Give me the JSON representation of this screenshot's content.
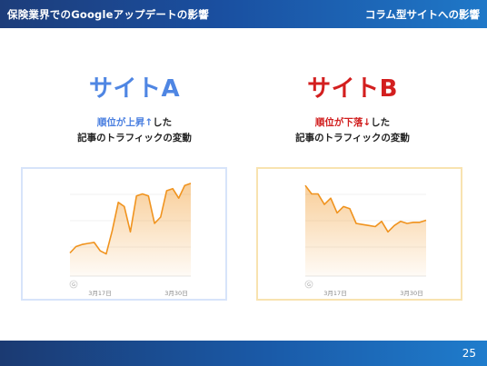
{
  "header": {
    "title": "保険業界でのGoogleアップデートの影響",
    "section": "コラム型サイトへの影響"
  },
  "site_a": {
    "title": "サイトA",
    "highlight": "順位が上昇↑",
    "suffix": "した",
    "line2": "記事のトラフィックの変動"
  },
  "site_b": {
    "title": "サイトB",
    "highlight": "順位が下落↓",
    "suffix": "した",
    "line2": "記事のトラフィックの変動"
  },
  "page_number": "25",
  "chart_data": [
    {
      "type": "area",
      "title": "",
      "tick_labels": [
        "3月17日",
        "3月30日"
      ],
      "grid": true,
      "color": "#f0931e",
      "values": [
        22,
        28,
        30,
        31,
        32,
        24,
        21,
        43,
        70,
        66,
        42,
        76,
        78,
        76,
        50,
        56,
        81,
        83,
        74,
        86,
        88
      ]
    },
    {
      "type": "area",
      "title": "",
      "tick_labels": [
        "3月17日",
        "3月30日"
      ],
      "grid": true,
      "color": "#f0931e",
      "values": [
        86,
        78,
        78,
        68,
        74,
        60,
        66,
        64,
        50,
        49,
        48,
        47,
        52,
        42,
        48,
        52,
        50,
        51,
        51,
        53
      ]
    }
  ]
}
